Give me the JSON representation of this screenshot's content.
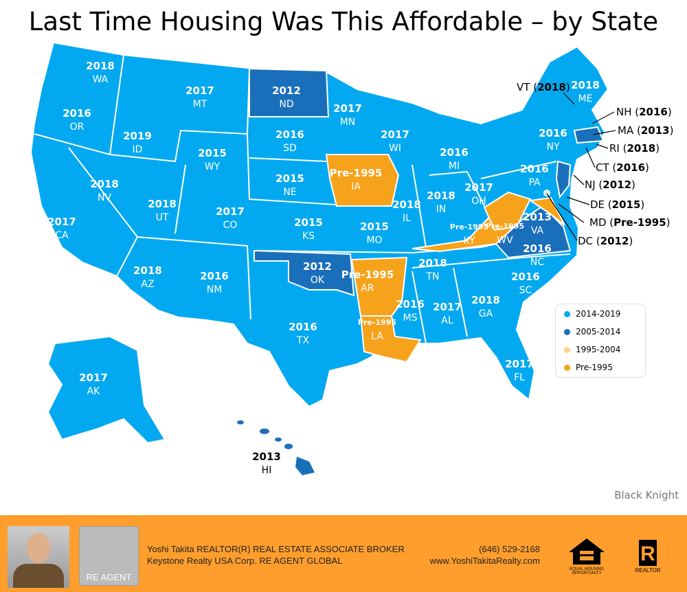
{
  "title": "Last Time Housing Was This Affordable – by State",
  "colors": {
    "c2014_2019": "#03a9f0",
    "c2005_2014": "#1a6fba",
    "c1995_2004": "#ffd38a",
    "pre1995": "#f7a21b",
    "footer": "#ff9e2c"
  },
  "states": [
    {
      "abbr": "WA",
      "year": "2018"
    },
    {
      "abbr": "OR",
      "year": "2016"
    },
    {
      "abbr": "CA",
      "year": "2017"
    },
    {
      "abbr": "ID",
      "year": "2019"
    },
    {
      "abbr": "NV",
      "year": "2018"
    },
    {
      "abbr": "MT",
      "year": "2017"
    },
    {
      "abbr": "WY",
      "year": "2015"
    },
    {
      "abbr": "UT",
      "year": "2018"
    },
    {
      "abbr": "AZ",
      "year": "2018"
    },
    {
      "abbr": "CO",
      "year": "2017"
    },
    {
      "abbr": "NM",
      "year": "2016"
    },
    {
      "abbr": "ND",
      "year": "2012"
    },
    {
      "abbr": "SD",
      "year": "2016"
    },
    {
      "abbr": "NE",
      "year": "2015"
    },
    {
      "abbr": "KS",
      "year": "2015"
    },
    {
      "abbr": "OK",
      "year": "2012"
    },
    {
      "abbr": "TX",
      "year": "2016"
    },
    {
      "abbr": "MN",
      "year": "2017"
    },
    {
      "abbr": "IA",
      "year": "Pre-1995"
    },
    {
      "abbr": "MO",
      "year": "2015"
    },
    {
      "abbr": "AR",
      "year": "Pre-1995"
    },
    {
      "abbr": "LA",
      "year": "Pre-1995"
    },
    {
      "abbr": "WI",
      "year": "2017"
    },
    {
      "abbr": "IL",
      "year": "2018"
    },
    {
      "abbr": "MI",
      "year": "2016"
    },
    {
      "abbr": "IN",
      "year": "2018"
    },
    {
      "abbr": "OH",
      "year": "2017"
    },
    {
      "abbr": "KY",
      "year": "Pre-1995"
    },
    {
      "abbr": "TN",
      "year": "2018"
    },
    {
      "abbr": "MS",
      "year": "2016"
    },
    {
      "abbr": "AL",
      "year": "2017"
    },
    {
      "abbr": "GA",
      "year": "2018"
    },
    {
      "abbr": "FL",
      "year": "2017"
    },
    {
      "abbr": "SC",
      "year": "2016"
    },
    {
      "abbr": "NC",
      "year": "2016"
    },
    {
      "abbr": "VA",
      "year": "2013"
    },
    {
      "abbr": "WV",
      "year": "Pre-1995"
    },
    {
      "abbr": "PA",
      "year": "2016"
    },
    {
      "abbr": "NY",
      "year": "2016"
    },
    {
      "abbr": "ME",
      "year": "2018"
    },
    {
      "abbr": "AK",
      "year": "2017"
    },
    {
      "abbr": "HI",
      "year": "2013"
    }
  ],
  "callouts": [
    {
      "abbr": "VT",
      "year": "2018"
    },
    {
      "abbr": "NH",
      "year": "2016"
    },
    {
      "abbr": "MA",
      "year": "2013"
    },
    {
      "abbr": "RI",
      "year": "2018"
    },
    {
      "abbr": "CT",
      "year": "2016"
    },
    {
      "abbr": "NJ",
      "year": "2012"
    },
    {
      "abbr": "DE",
      "year": "2015"
    },
    {
      "abbr": "MD",
      "year": "Pre-1995"
    },
    {
      "abbr": "DC",
      "year": "2012"
    }
  ],
  "legend": [
    "2014-2019",
    "2005-2014",
    "1995-2004",
    "Pre-1995"
  ],
  "source": "Black Knight",
  "footer": {
    "line1": "Yoshi Takita REALTOR(R) REAL ESTATE ASSOCIATE BROKER",
    "line2": "Keystone Realty USA Corp.  RE AGENT GLOBAL",
    "phone": "(646) 529-2168",
    "website": "www.YoshiTakitaRealty.com",
    "re_agent_logo": "RE AGENT",
    "eho_logo": "EQUAL HOUSING OPPORTUNITY",
    "realtor_logo": "REALTOR"
  }
}
